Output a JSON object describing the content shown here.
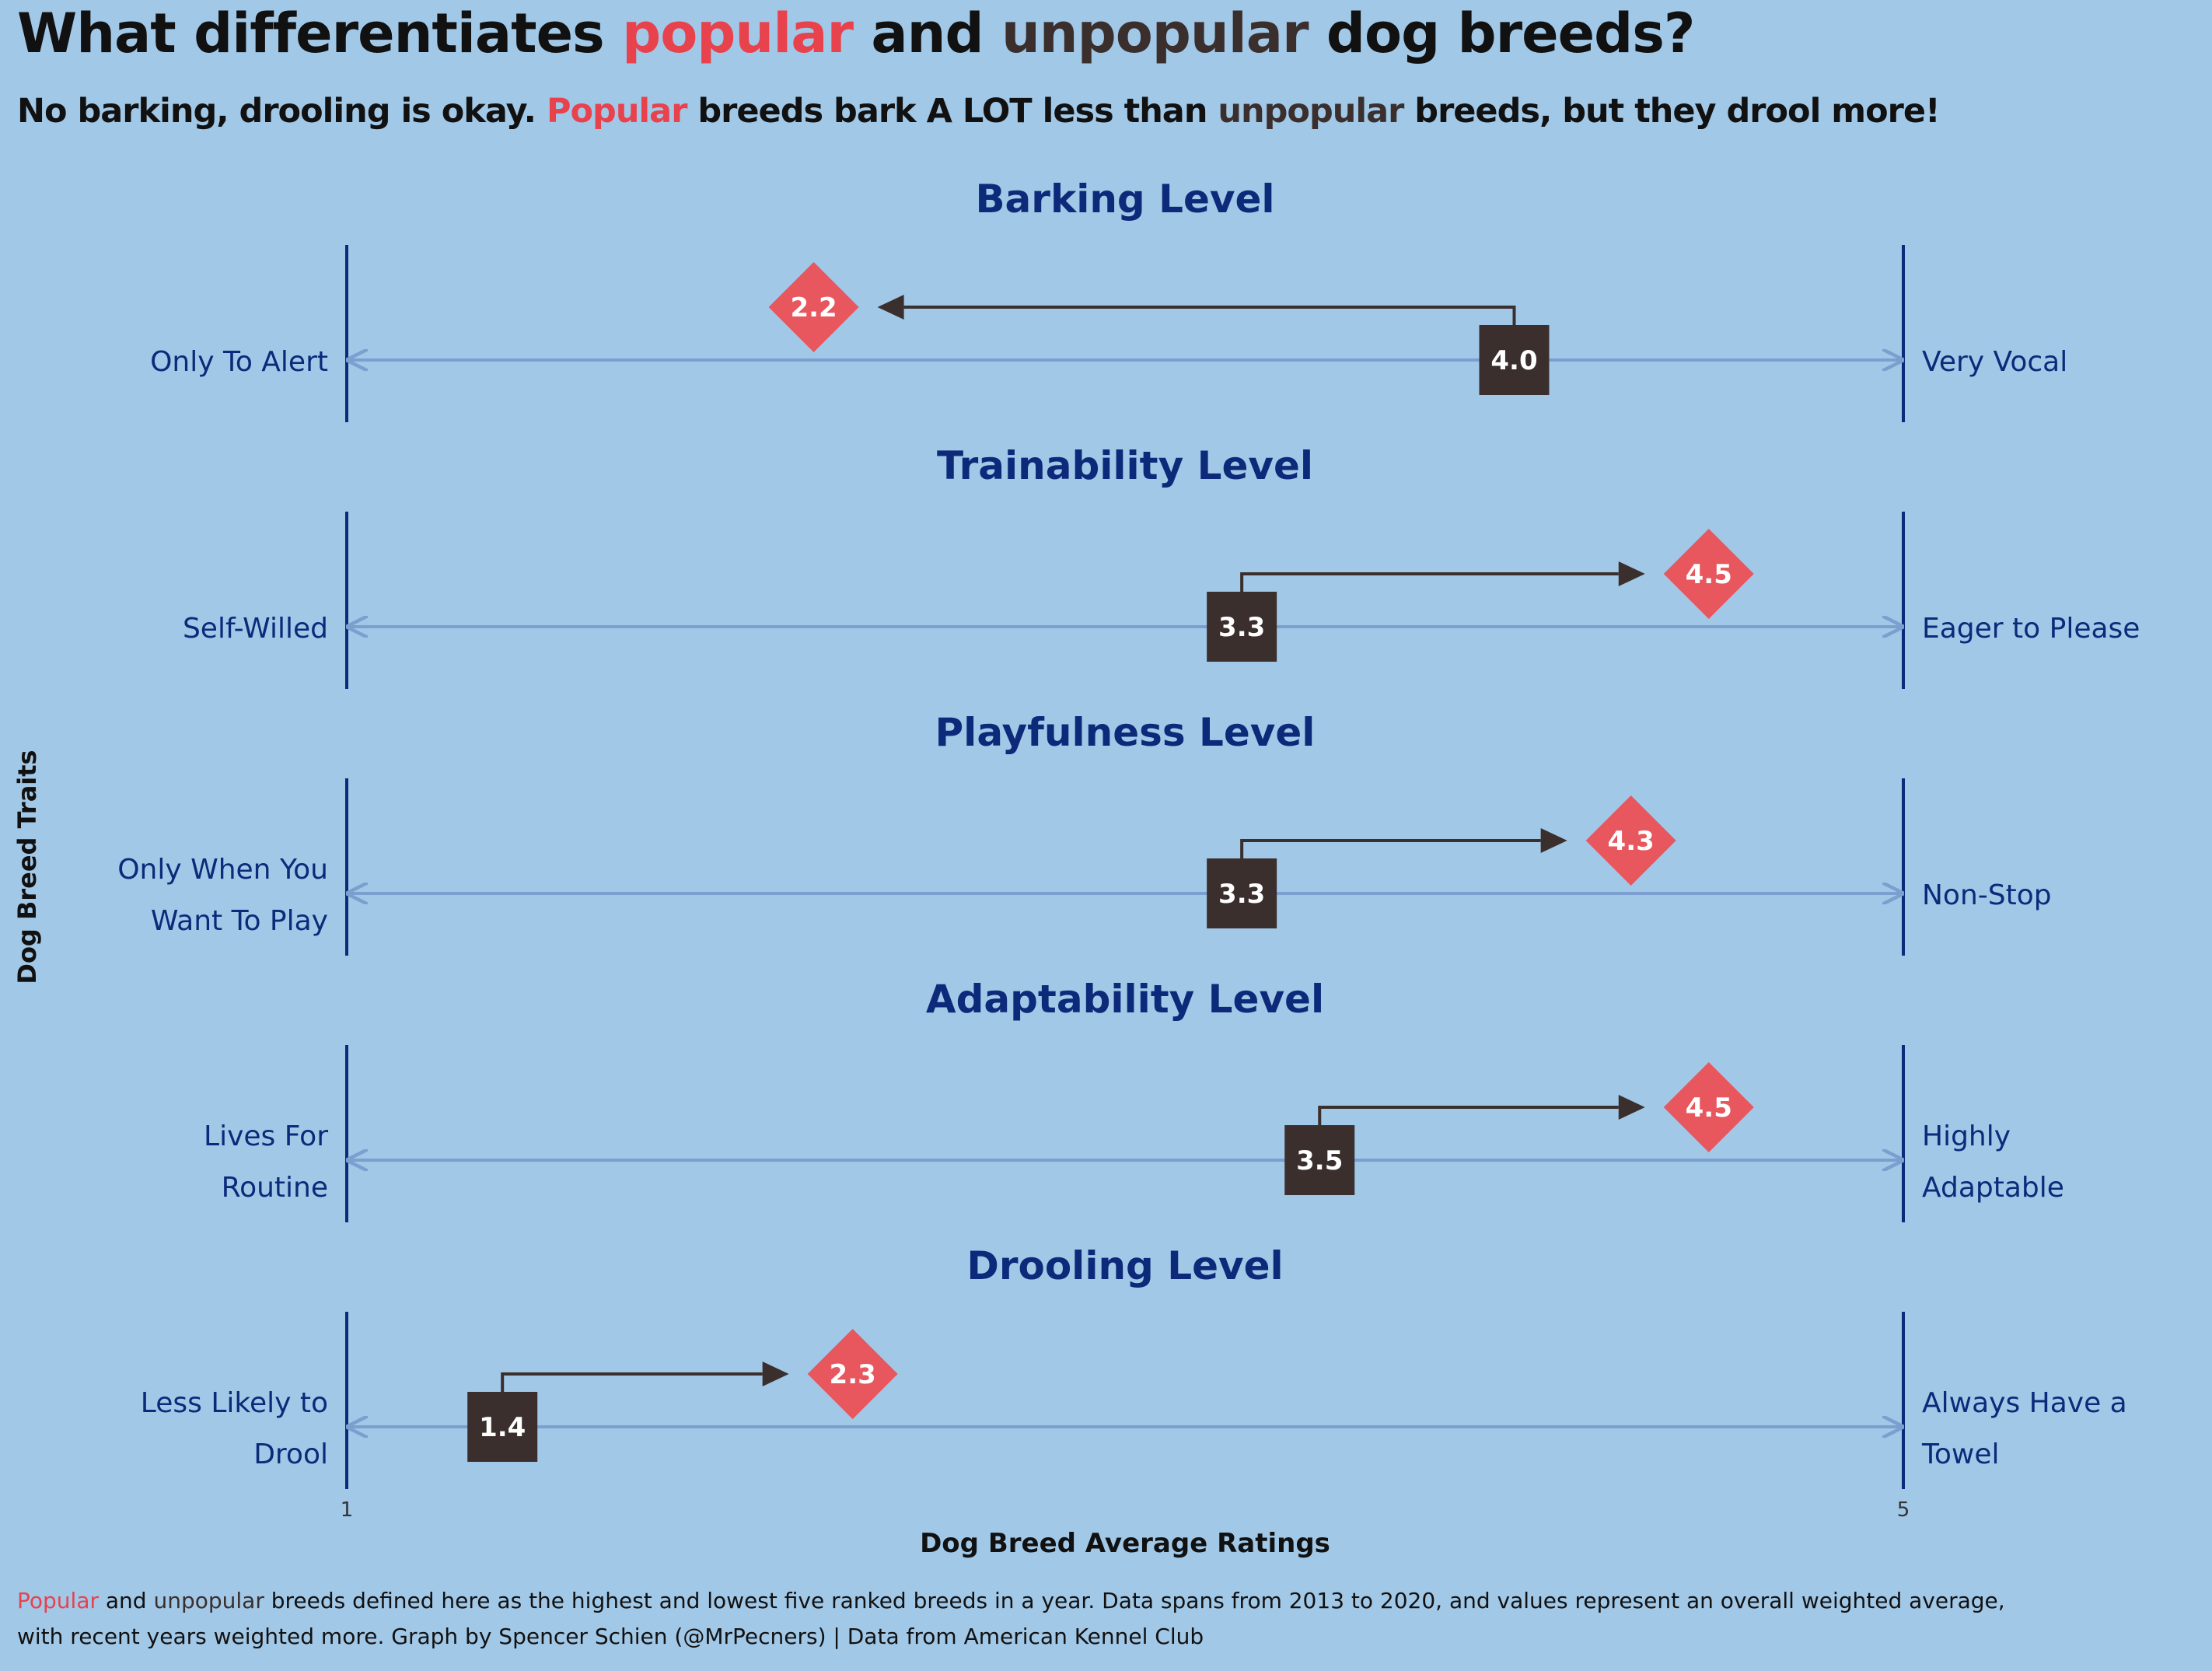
{
  "title": {
    "prefix": "What differentiates ",
    "popular": "popular",
    "middle": " and ",
    "unpopular": "unpopular",
    "suffix": " dog breeds?"
  },
  "subtitle": {
    "prefix": "No barking, drooling is okay. ",
    "popular": "Popular",
    "middle": " breeds bark A LOT less than ",
    "unpopular": "unpopular",
    "suffix": " breeds, but they drool more!"
  },
  "caption": {
    "popular": "Popular",
    "and": " and ",
    "unpopular": "unpopular",
    "line1_rest": " breeds defined here as the highest and lowest five ranked breeds in a year. Data spans from 2013 to 2020, and values represent an overall weighted average,",
    "line2": "with recent years weighted more. Graph by Spencer Schien (@MrPecners) | Data from American Kennel Club"
  },
  "colors": {
    "background": "#a2c8e7",
    "popular": "#e8565e",
    "unpopular": "#3a2f2d",
    "popular_text": "#e8424d",
    "label_navy": "#0d2a7a",
    "axis_line": "#7b9fcf",
    "arrow": "#3a2f2d"
  },
  "chart_data": {
    "type": "dumbbell-arrow",
    "ylabel": "Dog Breed Traits",
    "xlabel": "Dog Breed Average Ratings",
    "xlim": [
      1,
      5
    ],
    "xticks": [
      "1",
      "5"
    ],
    "series": [
      {
        "name": "popular",
        "marker": "diamond"
      },
      {
        "name": "unpopular",
        "marker": "square"
      }
    ],
    "traits": [
      {
        "title": "Barking Level",
        "low_label": [
          "Only To Alert"
        ],
        "high_label": [
          "Very Vocal"
        ],
        "unpopular": 4.0,
        "popular": 2.2,
        "unpopular_text": "4.0",
        "popular_text": "2.2"
      },
      {
        "title": "Trainability Level",
        "low_label": [
          "Self-Willed"
        ],
        "high_label": [
          "Eager to Please"
        ],
        "unpopular": 3.3,
        "popular": 4.5,
        "unpopular_text": "3.3",
        "popular_text": "4.5"
      },
      {
        "title": "Playfulness Level",
        "low_label": [
          "Only When You",
          "Want To Play"
        ],
        "high_label": [
          "Non-Stop"
        ],
        "unpopular": 3.3,
        "popular": 4.3,
        "unpopular_text": "3.3",
        "popular_text": "4.3"
      },
      {
        "title": "Adaptability Level",
        "low_label": [
          "Lives For",
          "Routine"
        ],
        "high_label": [
          "Highly",
          "Adaptable"
        ],
        "unpopular": 3.5,
        "popular": 4.5,
        "unpopular_text": "3.5",
        "popular_text": "4.5"
      },
      {
        "title": "Drooling Level",
        "low_label": [
          "Less Likely to",
          "Drool"
        ],
        "high_label": [
          "Always Have a",
          "Towel"
        ],
        "unpopular": 1.4,
        "popular": 2.3,
        "unpopular_text": "1.4",
        "popular_text": "2.3"
      }
    ]
  }
}
